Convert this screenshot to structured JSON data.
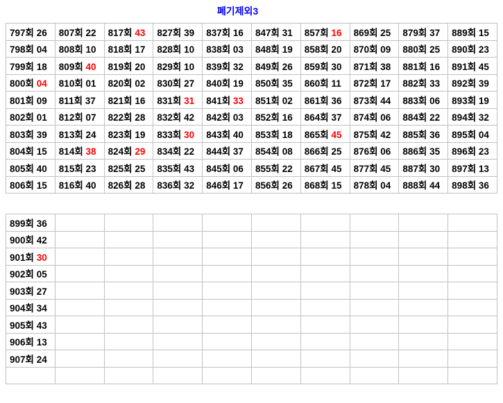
{
  "page": {
    "title": "폐기제외3"
  },
  "colors": {
    "title": "#0000ff",
    "highlight_red": "#ff0000",
    "muted_gray": "#606060",
    "text": "#000000",
    "grid": "#c0c0c0"
  },
  "tables": [
    {
      "name": "draw-results-upper",
      "rows": [
        [
          {
            "n": "797회",
            "v": "26"
          },
          {
            "n": "807회",
            "v": "22"
          },
          {
            "n": "817회",
            "v": "43",
            "r": true
          },
          {
            "n": "827회",
            "v": "39"
          },
          {
            "n": "837회",
            "v": "16"
          },
          {
            "n": "847회",
            "v": "31"
          },
          {
            "n": "857회",
            "v": "16",
            "r": true
          },
          {
            "n": "869회",
            "v": "25"
          },
          {
            "n": "879회",
            "v": "37"
          },
          {
            "n": "889회",
            "v": "15"
          }
        ],
        [
          {
            "n": "798회",
            "v": "04"
          },
          {
            "n": "808회",
            "v": "10"
          },
          {
            "n": "818회",
            "v": "17"
          },
          {
            "n": "828회",
            "v": "10"
          },
          {
            "n": "838회",
            "v": "03"
          },
          {
            "n": "848회",
            "v": "19"
          },
          {
            "n": "858회",
            "v": "20"
          },
          {
            "n": "870회",
            "v": "09"
          },
          {
            "n": "880회",
            "v": "25"
          },
          {
            "n": "890회",
            "v": "23"
          }
        ],
        [
          {
            "n": "799회",
            "v": "18"
          },
          {
            "n": "809회",
            "v": "40",
            "r": true
          },
          {
            "n": "819회",
            "v": "20"
          },
          {
            "n": "829회",
            "v": "10"
          },
          {
            "n": "839회",
            "v": "32"
          },
          {
            "n": "849회",
            "v": "26"
          },
          {
            "n": "859회",
            "v": "30"
          },
          {
            "n": "871회",
            "v": "38"
          },
          {
            "n": "881회",
            "v": "16"
          },
          {
            "n": "891회",
            "v": "45"
          }
        ],
        [
          {
            "n": "800회",
            "v": "04",
            "r": true
          },
          {
            "n": "810회",
            "v": "01"
          },
          {
            "n": "820회",
            "v": "02"
          },
          {
            "n": "830회",
            "v": "27"
          },
          {
            "n": "840회",
            "v": "19"
          },
          {
            "n": "850회",
            "v": "35"
          },
          {
            "n": "860회",
            "v": "11"
          },
          {
            "n": "872회",
            "v": "17"
          },
          {
            "n": "882회",
            "v": "33"
          },
          {
            "n": "892회",
            "v": "39"
          }
        ],
        [
          {
            "n": "801회",
            "v": "09"
          },
          {
            "n": "811회",
            "v": "37"
          },
          {
            "n": "821회",
            "v": "16"
          },
          {
            "n": "831회",
            "v": "31",
            "r": true
          },
          {
            "n": "841회",
            "v": "33",
            "r": true
          },
          {
            "n": "851회",
            "v": "02"
          },
          {
            "n": "861회",
            "v": "36"
          },
          {
            "n": "873회",
            "v": "44"
          },
          {
            "n": "883회",
            "v": "06",
            "g": true
          },
          {
            "n": "893회",
            "v": "19"
          }
        ],
        [
          {
            "n": "802회",
            "v": "01"
          },
          {
            "n": "812회",
            "v": "07"
          },
          {
            "n": "822회",
            "v": "28"
          },
          {
            "n": "832회",
            "v": "42"
          },
          {
            "n": "842회",
            "v": "03"
          },
          {
            "n": "852회",
            "v": "16"
          },
          {
            "n": "864회",
            "v": "37"
          },
          {
            "n": "874회",
            "v": "06"
          },
          {
            "n": "884회",
            "v": "22"
          },
          {
            "n": "894회",
            "v": "32"
          }
        ],
        [
          {
            "n": "803회",
            "v": "39"
          },
          {
            "n": "813회",
            "v": "24"
          },
          {
            "n": "823회",
            "v": "19"
          },
          {
            "n": "833회",
            "v": "30",
            "r": true
          },
          {
            "n": "843회",
            "v": "40"
          },
          {
            "n": "853회",
            "v": "18"
          },
          {
            "n": "865회",
            "v": "45",
            "r": true
          },
          {
            "n": "875회",
            "v": "42"
          },
          {
            "n": "885회",
            "v": "36"
          },
          {
            "n": "895회",
            "v": "04"
          }
        ],
        [
          {
            "n": "804회",
            "v": "15"
          },
          {
            "n": "814회",
            "v": "38",
            "r": true
          },
          {
            "n": "824회",
            "v": "29",
            "r": true
          },
          {
            "n": "834회",
            "v": "22"
          },
          {
            "n": "844회",
            "v": "37"
          },
          {
            "n": "854회",
            "v": "08"
          },
          {
            "n": "866회",
            "v": "25"
          },
          {
            "n": "876회",
            "v": "06"
          },
          {
            "n": "886회",
            "v": "35"
          },
          {
            "n": "896회",
            "v": "23"
          }
        ],
        [
          {
            "n": "805회",
            "v": "40"
          },
          {
            "n": "815회",
            "v": "23"
          },
          {
            "n": "825회",
            "v": "25"
          },
          {
            "n": "835회",
            "v": "43"
          },
          {
            "n": "845회",
            "v": "06"
          },
          {
            "n": "855회",
            "v": "22"
          },
          {
            "n": "867회",
            "v": "45"
          },
          {
            "n": "877회",
            "v": "45"
          },
          {
            "n": "887회",
            "v": "30"
          },
          {
            "n": "897회",
            "v": "13"
          }
        ],
        [
          {
            "n": "806회",
            "v": "15"
          },
          {
            "n": "816회",
            "v": "40"
          },
          {
            "n": "826회",
            "v": "28"
          },
          {
            "n": "836회",
            "v": "32"
          },
          {
            "n": "846회",
            "v": "17"
          },
          {
            "n": "856회",
            "v": "26"
          },
          {
            "n": "868회",
            "v": "15"
          },
          {
            "n": "878회",
            "v": "04"
          },
          {
            "n": "888회",
            "v": "44"
          },
          {
            "n": "898회",
            "v": "36"
          }
        ]
      ]
    },
    {
      "name": "draw-results-lower",
      "rows": [
        [
          {
            "n": "899회",
            "v": "36"
          },
          null,
          null,
          null,
          null,
          null,
          null,
          null,
          null,
          null
        ],
        [
          {
            "n": "900회",
            "v": "42"
          },
          null,
          null,
          null,
          null,
          null,
          null,
          null,
          null,
          null
        ],
        [
          {
            "n": "901회",
            "v": "30",
            "r": true
          },
          null,
          null,
          null,
          null,
          null,
          null,
          null,
          null,
          null
        ],
        [
          {
            "n": "902회",
            "v": "05"
          },
          null,
          null,
          null,
          null,
          null,
          null,
          null,
          null,
          null
        ],
        [
          {
            "n": "903회",
            "v": "27"
          },
          null,
          null,
          null,
          null,
          null,
          null,
          null,
          null,
          null
        ],
        [
          {
            "n": "904회",
            "v": "34"
          },
          null,
          null,
          null,
          null,
          null,
          null,
          null,
          null,
          null
        ],
        [
          {
            "n": "905회",
            "v": "43"
          },
          null,
          null,
          null,
          null,
          null,
          null,
          null,
          null,
          null
        ],
        [
          {
            "n": "906회",
            "v": "13"
          },
          null,
          null,
          null,
          null,
          null,
          null,
          null,
          null,
          null
        ],
        [
          {
            "n": "907회",
            "v": "24"
          },
          null,
          null,
          null,
          null,
          null,
          null,
          null,
          null,
          null
        ],
        [
          null,
          null,
          null,
          null,
          null,
          null,
          null,
          null,
          null,
          null
        ]
      ]
    }
  ]
}
